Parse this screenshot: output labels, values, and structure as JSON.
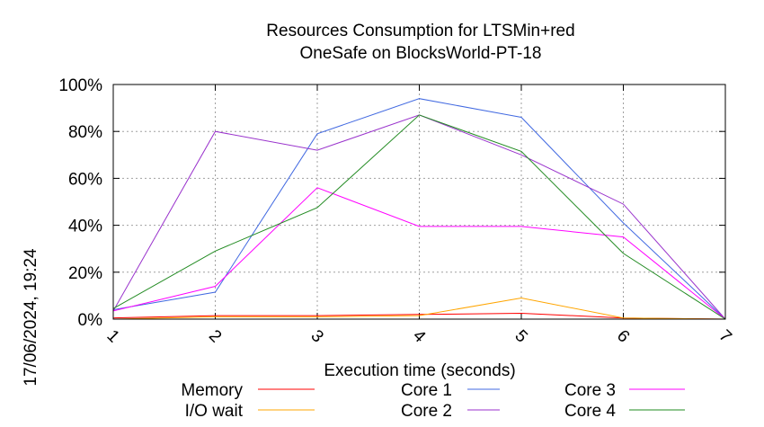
{
  "chart_data": {
    "type": "line",
    "title_line1": "Resources Consumption for LTSMin+red",
    "title_line2": "OneSafe on BlocksWorld-PT-18",
    "xlabel": "Execution time (seconds)",
    "ylabel": "",
    "side_label": "17/06/2024, 19:24",
    "x": [
      1,
      2,
      3,
      4,
      5,
      6,
      7
    ],
    "xlim": [
      1,
      7
    ],
    "ylim": [
      0,
      100
    ],
    "x_ticks": [
      "1",
      "2",
      "3",
      "4",
      "5",
      "6",
      "7"
    ],
    "y_ticks": [
      {
        "value": 0,
        "label": "0%"
      },
      {
        "value": 20,
        "label": "20%"
      },
      {
        "value": 40,
        "label": "40%"
      },
      {
        "value": 60,
        "label": "60%"
      },
      {
        "value": 80,
        "label": "80%"
      },
      {
        "value": 100,
        "label": "100%"
      }
    ],
    "grid": true,
    "legend_position": "bottom",
    "series": [
      {
        "name": "Memory",
        "color": "#ff0000",
        "values": [
          0.5,
          1.5,
          1.5,
          2.0,
          2.5,
          0.5,
          0
        ]
      },
      {
        "name": "I/O wait",
        "color": "#ffa500",
        "values": [
          0,
          1.0,
          1.0,
          1.5,
          9.0,
          0.5,
          0
        ]
      },
      {
        "name": "Core 1",
        "color": "#4169e1",
        "values": [
          4,
          11.5,
          79,
          94,
          86,
          41,
          0
        ]
      },
      {
        "name": "Core 2",
        "color": "#9932cc",
        "values": [
          3.5,
          80,
          72,
          87,
          70,
          49,
          0
        ]
      },
      {
        "name": "Core 3",
        "color": "#ff00ff",
        "values": [
          3.5,
          14,
          56,
          39.5,
          39.5,
          35,
          0
        ]
      },
      {
        "name": "Core 4",
        "color": "#228b22",
        "values": [
          4.5,
          29,
          47.5,
          87,
          71.5,
          28,
          0
        ]
      }
    ]
  }
}
